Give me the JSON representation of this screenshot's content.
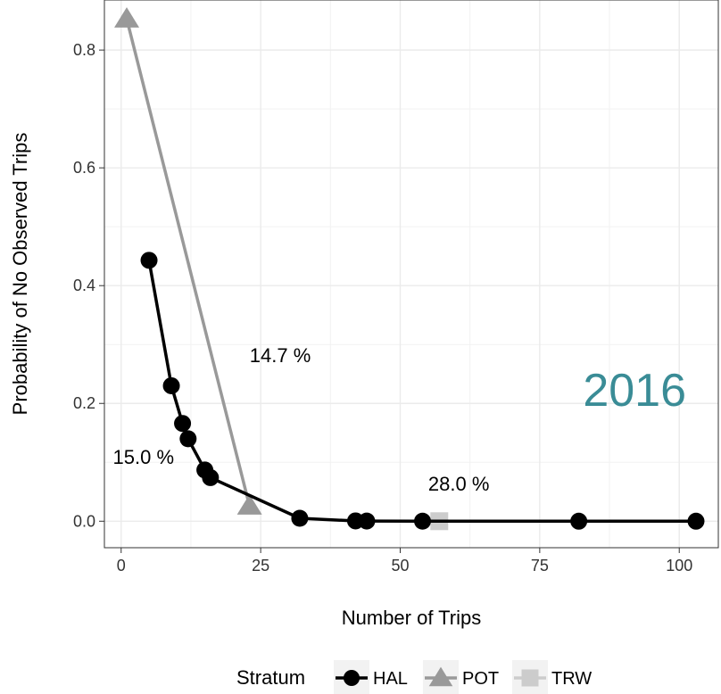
{
  "chart_data": {
    "type": "line",
    "xlabel": "Number of Trips",
    "ylabel": "Probability of No Observed Trips",
    "xlim": [
      -3,
      107
    ],
    "ylim": [
      -0.045,
      0.885
    ],
    "x_ticks": [
      0,
      25,
      50,
      75,
      100
    ],
    "y_ticks": [
      0.0,
      0.2,
      0.4,
      0.6,
      0.8
    ],
    "x_tick_labels": [
      "0",
      "25",
      "50",
      "75",
      "100"
    ],
    "y_tick_labels": [
      "0.0",
      "0.2",
      "0.4",
      "0.6",
      "0.8"
    ],
    "grid": true,
    "legend_position": "bottom",
    "legend_title": "Stratum",
    "series": [
      {
        "name": "HAL",
        "marker": "circle",
        "color": "#000000",
        "points": [
          {
            "x": 5,
            "y": 0.443
          },
          {
            "x": 9,
            "y": 0.23
          },
          {
            "x": 11,
            "y": 0.166
          },
          {
            "x": 12,
            "y": 0.14
          },
          {
            "x": 15,
            "y": 0.087
          },
          {
            "x": 16,
            "y": 0.074
          },
          {
            "x": 32,
            "y": 0.005
          },
          {
            "x": 42,
            "y": 0.0005
          },
          {
            "x": 44,
            "y": 0.0003
          },
          {
            "x": 54,
            "y": 2e-05
          },
          {
            "x": 82,
            "y": 0.0
          },
          {
            "x": 103,
            "y": 0.0
          }
        ]
      },
      {
        "name": "POT",
        "marker": "triangle",
        "color": "#999999",
        "points": [
          {
            "x": 1,
            "y": 0.853
          },
          {
            "x": 23,
            "y": 0.026
          }
        ]
      },
      {
        "name": "TRW",
        "marker": "square",
        "color": "#cccccc",
        "points": [
          {
            "x": 57,
            "y": 0.0
          }
        ]
      }
    ],
    "annotations": [
      {
        "text": "14.7 %",
        "x": 28.5,
        "y": 0.27
      },
      {
        "text": "15.0 %",
        "x": 4,
        "y": 0.097
      },
      {
        "text": "28.0 %",
        "x": 60.5,
        "y": 0.052
      }
    ],
    "year_label": {
      "text": "2016",
      "color": "#3a8c96",
      "x": 92,
      "y": 0.196
    }
  }
}
